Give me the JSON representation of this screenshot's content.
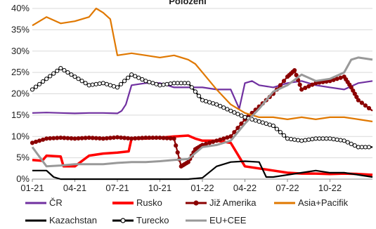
{
  "chart_data": {
    "type": "line",
    "title": "Položení",
    "xlabel": "",
    "ylabel": "",
    "ylim": [
      0,
      40
    ],
    "y_ticks": [
      "0%",
      "5%",
      "10%",
      "15%",
      "20%",
      "25%",
      "30%",
      "35%",
      "40%"
    ],
    "x_tick_labels": [
      "01-21",
      "04-21",
      "07-21",
      "10-21",
      "01-22",
      "04-22",
      "07-22",
      "10-22"
    ],
    "x_range": [
      0,
      24
    ],
    "x_unit": "months since 01-21",
    "grid": "horizontal",
    "legend_position": "bottom",
    "series": [
      {
        "name": "ČR",
        "color": "#7030A0",
        "marker": "none",
        "points": [
          [
            0,
            15.5
          ],
          [
            1,
            15.6
          ],
          [
            2,
            15.5
          ],
          [
            3,
            15.4
          ],
          [
            4,
            15.5
          ],
          [
            5,
            15.5
          ],
          [
            6,
            15.4
          ],
          [
            6.3,
            16.0
          ],
          [
            6.6,
            17.5
          ],
          [
            7,
            22
          ],
          [
            8,
            22.5
          ],
          [
            9,
            22.5
          ],
          [
            9.5,
            22.0
          ],
          [
            10,
            21.5
          ],
          [
            11,
            21.5
          ],
          [
            12,
            21.5
          ],
          [
            13,
            21.0
          ],
          [
            14,
            21.0
          ],
          [
            14.6,
            16.5
          ],
          [
            15.0,
            22.5
          ],
          [
            15.5,
            23.0
          ],
          [
            16,
            22.0
          ],
          [
            17,
            21.5
          ],
          [
            18,
            22.5
          ],
          [
            19,
            23.0
          ],
          [
            20,
            22.0
          ],
          [
            21,
            21.5
          ],
          [
            22,
            21.0
          ],
          [
            23,
            22.5
          ],
          [
            24,
            23.0
          ]
        ]
      },
      {
        "name": "Rusko",
        "color": "#FF0000",
        "marker": "none",
        "points": [
          [
            0,
            4.5
          ],
          [
            0.7,
            4.3
          ],
          [
            1,
            5.5
          ],
          [
            2,
            5.3
          ],
          [
            2.2,
            3.0
          ],
          [
            3,
            3.0
          ],
          [
            4,
            5.5
          ],
          [
            5,
            6.0
          ],
          [
            6,
            6.2
          ],
          [
            6.8,
            6.5
          ],
          [
            7.0,
            9.5
          ],
          [
            8,
            9.5
          ],
          [
            9,
            9.7
          ],
          [
            10,
            10.0
          ],
          [
            11,
            10.2
          ],
          [
            11.5,
            9.5
          ],
          [
            12,
            9.0
          ],
          [
            13,
            9.0
          ],
          [
            14,
            8.5
          ],
          [
            15,
            3.0
          ],
          [
            16,
            2.5
          ],
          [
            17,
            2.0
          ],
          [
            18,
            1.5
          ],
          [
            19,
            1.3
          ],
          [
            20,
            1.3
          ],
          [
            21,
            1.2
          ],
          [
            22,
            1.3
          ],
          [
            23,
            1.2
          ],
          [
            24,
            1.0
          ]
        ]
      },
      {
        "name": "Již Amerika",
        "color": "#8B0000",
        "marker": "filled-circle",
        "points": [
          [
            0,
            8.5
          ],
          [
            1,
            9.5
          ],
          [
            2,
            9.7
          ],
          [
            3,
            9.5
          ],
          [
            4,
            9.7
          ],
          [
            5,
            9.5
          ],
          [
            6,
            9.8
          ],
          [
            7,
            9.5
          ],
          [
            8,
            9.7
          ],
          [
            9,
            9.7
          ],
          [
            10,
            9.5
          ],
          [
            10.5,
            3.0
          ],
          [
            11,
            4.0
          ],
          [
            11.5,
            7.0
          ],
          [
            12,
            8.0
          ],
          [
            13,
            9.0
          ],
          [
            14,
            10.0
          ],
          [
            15,
            14.0
          ],
          [
            16,
            17.0
          ],
          [
            17,
            20.0
          ],
          [
            18,
            24.0
          ],
          [
            18.5,
            25.5
          ],
          [
            19,
            21.0
          ],
          [
            20,
            22.5
          ],
          [
            21,
            23.0
          ],
          [
            22,
            24.0
          ],
          [
            22.5,
            21.5
          ],
          [
            23,
            18.5
          ],
          [
            24,
            16.0
          ]
        ]
      },
      {
        "name": "Asia+Pacifik",
        "color": "#E07800",
        "marker": "none",
        "points": [
          [
            0,
            36
          ],
          [
            1,
            38
          ],
          [
            2,
            36.5
          ],
          [
            3,
            37
          ],
          [
            4,
            38
          ],
          [
            4.5,
            40
          ],
          [
            5,
            39
          ],
          [
            5.5,
            37.5
          ],
          [
            6,
            29
          ],
          [
            7,
            29.5
          ],
          [
            8,
            29
          ],
          [
            9,
            28.5
          ],
          [
            10,
            29
          ],
          [
            11,
            28
          ],
          [
            11.5,
            27
          ],
          [
            12,
            25
          ],
          [
            13,
            21
          ],
          [
            14,
            17.5
          ],
          [
            15,
            15.5
          ],
          [
            16,
            14.5
          ],
          [
            17,
            14.5
          ],
          [
            18,
            14.0
          ],
          [
            19,
            14.5
          ],
          [
            20,
            14.0
          ],
          [
            21,
            14.5
          ],
          [
            22,
            14.5
          ],
          [
            23,
            14.0
          ],
          [
            24,
            13.5
          ]
        ]
      },
      {
        "name": "Kazachstan",
        "color": "#000000",
        "marker": "none",
        "points": [
          [
            0,
            2.0
          ],
          [
            1,
            2.0
          ],
          [
            1.5,
            0.5
          ],
          [
            2,
            0.0
          ],
          [
            3,
            0.0
          ],
          [
            5,
            0.0
          ],
          [
            7,
            0.0
          ],
          [
            9,
            0.0
          ],
          [
            11,
            0.0
          ],
          [
            12,
            0.3
          ],
          [
            13,
            3.0
          ],
          [
            14,
            4.0
          ],
          [
            15,
            4.2
          ],
          [
            16,
            4.0
          ],
          [
            16.5,
            0.5
          ],
          [
            17,
            0.5
          ],
          [
            18,
            1.0
          ],
          [
            19,
            1.5
          ],
          [
            20,
            2.0
          ],
          [
            21,
            1.5
          ],
          [
            22,
            1.5
          ],
          [
            23,
            1.0
          ],
          [
            24,
            0.5
          ]
        ]
      },
      {
        "name": "Turecko",
        "color": "#000000",
        "marker": "open-circle",
        "points": [
          [
            0,
            21
          ],
          [
            1,
            23.5
          ],
          [
            2,
            26
          ],
          [
            3,
            24
          ],
          [
            4,
            22
          ],
          [
            5,
            22.5
          ],
          [
            6,
            21.5
          ],
          [
            7,
            24.5
          ],
          [
            8,
            23
          ],
          [
            9,
            22
          ],
          [
            10,
            22.5
          ],
          [
            11,
            22.5
          ],
          [
            12,
            18.5
          ],
          [
            13,
            17.5
          ],
          [
            14,
            16
          ],
          [
            15,
            14.5
          ],
          [
            16,
            13.5
          ],
          [
            17,
            12.5
          ],
          [
            18,
            9.5
          ],
          [
            19,
            9.0
          ],
          [
            20,
            9.5
          ],
          [
            21,
            9.5
          ],
          [
            22,
            9.0
          ],
          [
            23,
            7.5
          ],
          [
            24,
            7.5
          ]
        ]
      },
      {
        "name": "EU+CEE",
        "color": "#999999",
        "marker": "none",
        "points": [
          [
            0,
            7.5
          ],
          [
            1,
            3.0
          ],
          [
            2,
            3.2
          ],
          [
            3,
            3.5
          ],
          [
            4,
            3.5
          ],
          [
            5,
            3.5
          ],
          [
            6,
            3.8
          ],
          [
            7,
            4.0
          ],
          [
            8,
            4.0
          ],
          [
            9,
            4.2
          ],
          [
            10,
            4.5
          ],
          [
            11,
            4.7
          ],
          [
            12,
            7.5
          ],
          [
            13,
            8.0
          ],
          [
            14,
            9.0
          ],
          [
            15,
            13.0
          ],
          [
            16,
            16.5
          ],
          [
            17,
            20.5
          ],
          [
            18,
            22.0
          ],
          [
            19,
            24.5
          ],
          [
            20,
            23.0
          ],
          [
            21,
            23.5
          ],
          [
            22,
            25.0
          ],
          [
            22.5,
            28.0
          ],
          [
            23,
            28.5
          ],
          [
            24,
            28.0
          ]
        ]
      }
    ]
  }
}
